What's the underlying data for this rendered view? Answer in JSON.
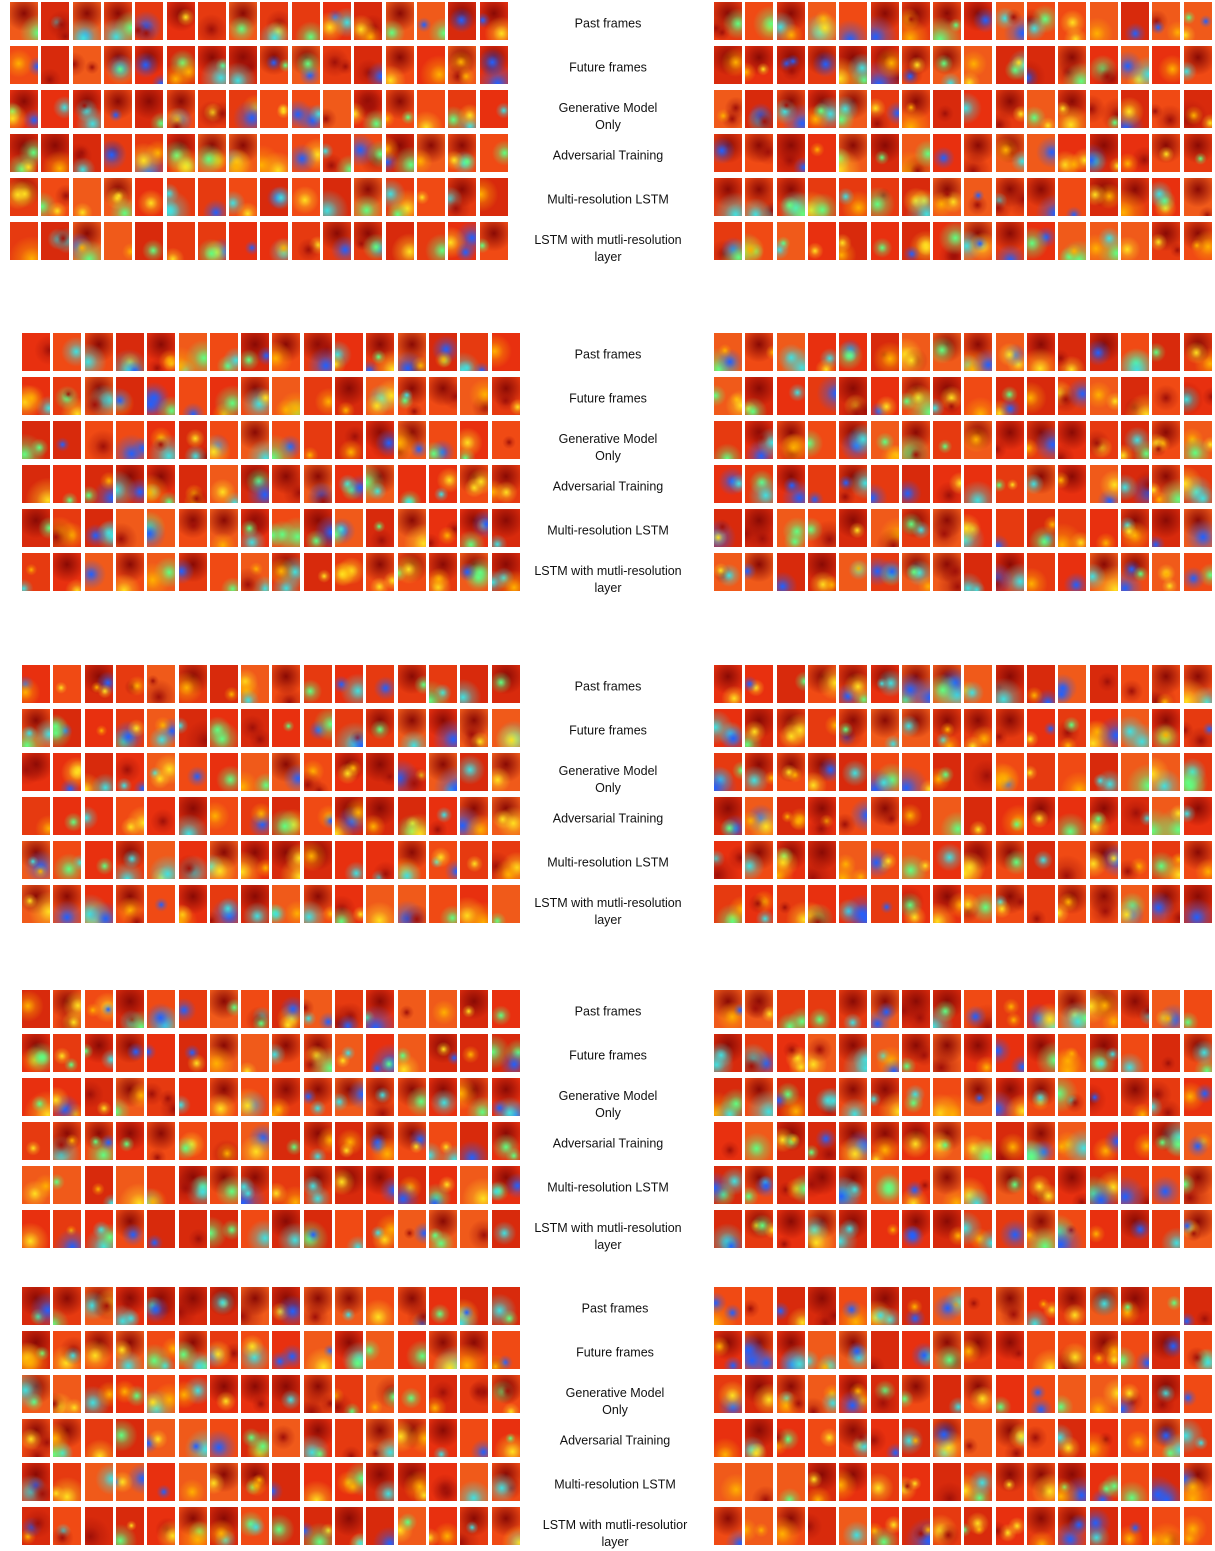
{
  "figure": {
    "blocks": [
      {
        "labels": [
          [
            "Past frames"
          ],
          [
            "Future frames"
          ],
          [
            "Generative Model",
            "Only"
          ],
          [
            "Adversarial Training"
          ],
          [
            "Multi-resolution LSTM"
          ],
          [
            "LSTM with mutli-resolution",
            "layer"
          ]
        ]
      },
      {
        "labels": [
          [
            "Past frames"
          ],
          [
            "Future frames"
          ],
          [
            "Generative Model",
            "Only"
          ],
          [
            "Adversarial Training"
          ],
          [
            "Multi-resolution LSTM"
          ],
          [
            "LSTM with mutli-resolution",
            "layer"
          ]
        ]
      },
      {
        "labels": [
          [
            "Past frames"
          ],
          [
            "Future frames"
          ],
          [
            "Generative Model",
            "Only"
          ],
          [
            "Adversarial Training"
          ],
          [
            "Multi-resolution LSTM"
          ],
          [
            "LSTM with mutli-resolution",
            "layer"
          ]
        ]
      },
      {
        "labels": [
          [
            "Past frames"
          ],
          [
            "Future frames"
          ],
          [
            "Generative Model",
            "Only"
          ],
          [
            "Adversarial Training"
          ],
          [
            "Multi-resolution LSTM"
          ],
          [
            "LSTM with mutli-resolution",
            "layer"
          ]
        ]
      },
      {
        "labels": [
          [
            "Past frames"
          ],
          [
            "Future frames"
          ],
          [
            "Generative Model",
            "Only"
          ],
          [
            "Adversarial Training"
          ],
          [
            "Multi-resolution LSTM"
          ],
          [
            "LSTM with mutli-resolutior",
            "layer"
          ]
        ]
      }
    ]
  }
}
